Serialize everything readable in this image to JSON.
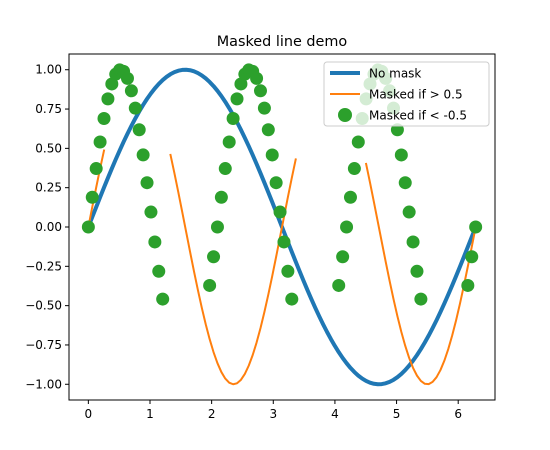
{
  "chart_data": {
    "type": "line",
    "title": "Masked line demo",
    "xlabel": "",
    "ylabel": "",
    "xlim": [
      -0.314,
      6.597
    ],
    "ylim": [
      -1.1,
      1.1
    ],
    "xticks": [
      0,
      1,
      2,
      3,
      4,
      5,
      6
    ],
    "yticks": [
      -1.0,
      -0.75,
      -0.5,
      -0.25,
      0.0,
      0.25,
      0.5,
      0.75,
      1.0
    ],
    "xtick_labels": [
      "0",
      "1",
      "2",
      "3",
      "4",
      "5",
      "6"
    ],
    "ytick_labels": [
      "−1.00",
      "−0.75",
      "−0.50",
      "−0.25",
      "0.00",
      "0.25",
      "0.50",
      "0.75",
      "1.00"
    ],
    "grid": false,
    "legend_position": "upper right",
    "x": {
      "start": 0,
      "stop": 6.2832,
      "count": 100
    },
    "series": [
      {
        "name": "No mask",
        "function": "sin(x)",
        "style": "line",
        "color": "#1f77b4"
      },
      {
        "name": "Masked if > 0.5",
        "function": "sin(2x)",
        "style": "line",
        "color": "#ff7f0e",
        "mask": "value > 0.5"
      },
      {
        "name": "Masked if < -0.5",
        "function": "sin(3x)",
        "style": "markers",
        "color": "#2ca02c",
        "mask": "value < -0.5"
      }
    ]
  }
}
